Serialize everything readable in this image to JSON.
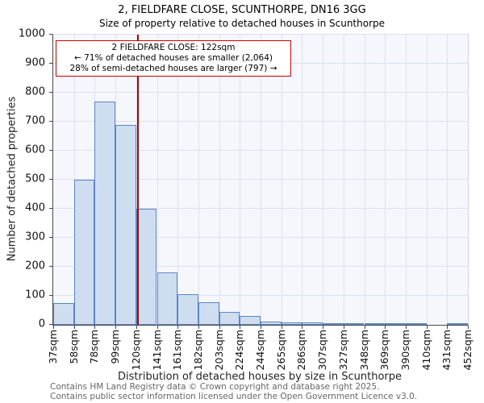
{
  "chart_data": {
    "type": "bar",
    "title": "2, FIELDFARE CLOSE, SCUNTHORPE, DN16 3GG",
    "subtitle": "Size of property relative to detached houses in Scunthorpe",
    "xlabel": "Distribution of detached houses by size in Scunthorpe",
    "ylabel": "Number of detached properties",
    "ylim": [
      0,
      1000
    ],
    "ytick_step": 100,
    "grid": true,
    "legend": false,
    "x_tick_labels": [
      "37sqm",
      "58sqm",
      "78sqm",
      "99sqm",
      "120sqm",
      "141sqm",
      "161sqm",
      "182sqm",
      "203sqm",
      "224sqm",
      "244sqm",
      "265sqm",
      "286sqm",
      "307sqm",
      "327sqm",
      "348sqm",
      "369sqm",
      "390sqm",
      "410sqm",
      "431sqm",
      "452sqm"
    ],
    "bin_edges_sqm": [
      37,
      58,
      78,
      99,
      120,
      141,
      161,
      182,
      203,
      224,
      244,
      265,
      286,
      307,
      327,
      348,
      369,
      390,
      410,
      431,
      452
    ],
    "values": [
      75,
      500,
      770,
      690,
      400,
      180,
      105,
      78,
      45,
      30,
      12,
      8,
      8,
      5,
      3,
      2,
      1,
      1,
      0,
      5
    ],
    "bar_fill": "#cfddf1",
    "bar_border": "#5b87c5",
    "marker": {
      "value_sqm": 122,
      "color": "#b30000"
    },
    "annotation": {
      "line1": "2 FIELDFARE CLOSE: 122sqm",
      "line2": "← 71% of detached houses are smaller (2,064)",
      "line3": "28% of semi-detached houses are larger (797) →",
      "border_color": "#cc0000"
    }
  },
  "footer": {
    "line1": "Contains HM Land Registry data © Crown copyright and database right 2025.",
    "line2": "Contains public sector information licensed under the Open Government Licence v3.0."
  }
}
